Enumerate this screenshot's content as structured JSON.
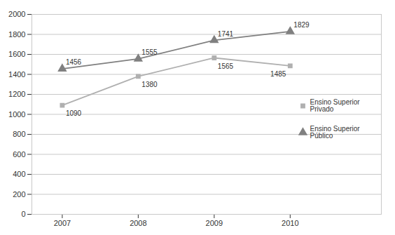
{
  "chart_data": {
    "type": "line",
    "x": [
      2007,
      2008,
      2009,
      2010
    ],
    "xlim": [
      2006.6,
      2011.2
    ],
    "xticks": [
      2007,
      2008,
      2009,
      2010
    ],
    "ylim": [
      0,
      2000
    ],
    "yticks": [
      0,
      200,
      400,
      600,
      800,
      1000,
      1200,
      1400,
      1600,
      1800,
      2000
    ],
    "grid": "y",
    "legend": "right",
    "data_labels": true,
    "series": [
      {
        "name": "Ensino Superior\nPrivado",
        "color": "#b0b0b0",
        "marker": "square",
        "values": [
          1090,
          1380,
          1565,
          1485
        ]
      },
      {
        "name": "Ensino Superior\nPúblico",
        "color": "#808080",
        "marker": "triangle",
        "values": [
          1456,
          1555,
          1741,
          1829
        ]
      }
    ]
  }
}
